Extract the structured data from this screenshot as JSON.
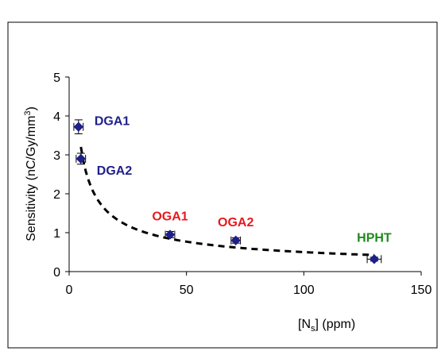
{
  "chart_data": {
    "type": "scatter",
    "xlabel": {
      "prefix": "[N",
      "sub": "s",
      "suffix": "] (ppm)"
    },
    "ylabel": {
      "prefix": "Sensitivity (nC/Gy/mm",
      "sup": "3",
      "suffix": ")"
    },
    "xlim": [
      0,
      150
    ],
    "ylim": [
      0,
      5
    ],
    "x_ticks": [
      "0",
      "50",
      "100",
      "150"
    ],
    "y_ticks": [
      "0",
      "1",
      "2",
      "3",
      "4",
      "5"
    ],
    "grid": false,
    "points": [
      {
        "label": "DGA1",
        "x": 4,
        "y": 3.72,
        "xerr": 2,
        "yerr": 0.18,
        "color": "#1f1f8a"
      },
      {
        "label": "DGA2",
        "x": 5,
        "y": 2.9,
        "xerr": 2,
        "yerr": 0.14,
        "color": "#1f1f8a"
      },
      {
        "label": "OGA1",
        "x": 43,
        "y": 0.95,
        "xerr": 2,
        "yerr": 0.08,
        "color": "#e8191e"
      },
      {
        "label": "OGA2",
        "x": 71,
        "y": 0.8,
        "xerr": 2,
        "yerr": 0.07,
        "color": "#e8191e"
      },
      {
        "label": "HPHT",
        "x": 130,
        "y": 0.32,
        "xerr": 3,
        "yerr": 0.05,
        "color": "#1e8a1e"
      }
    ],
    "trend_line": {
      "style": "dashed",
      "x_range": [
        5,
        130
      ]
    },
    "marker_color": "#1f1f8a"
  }
}
